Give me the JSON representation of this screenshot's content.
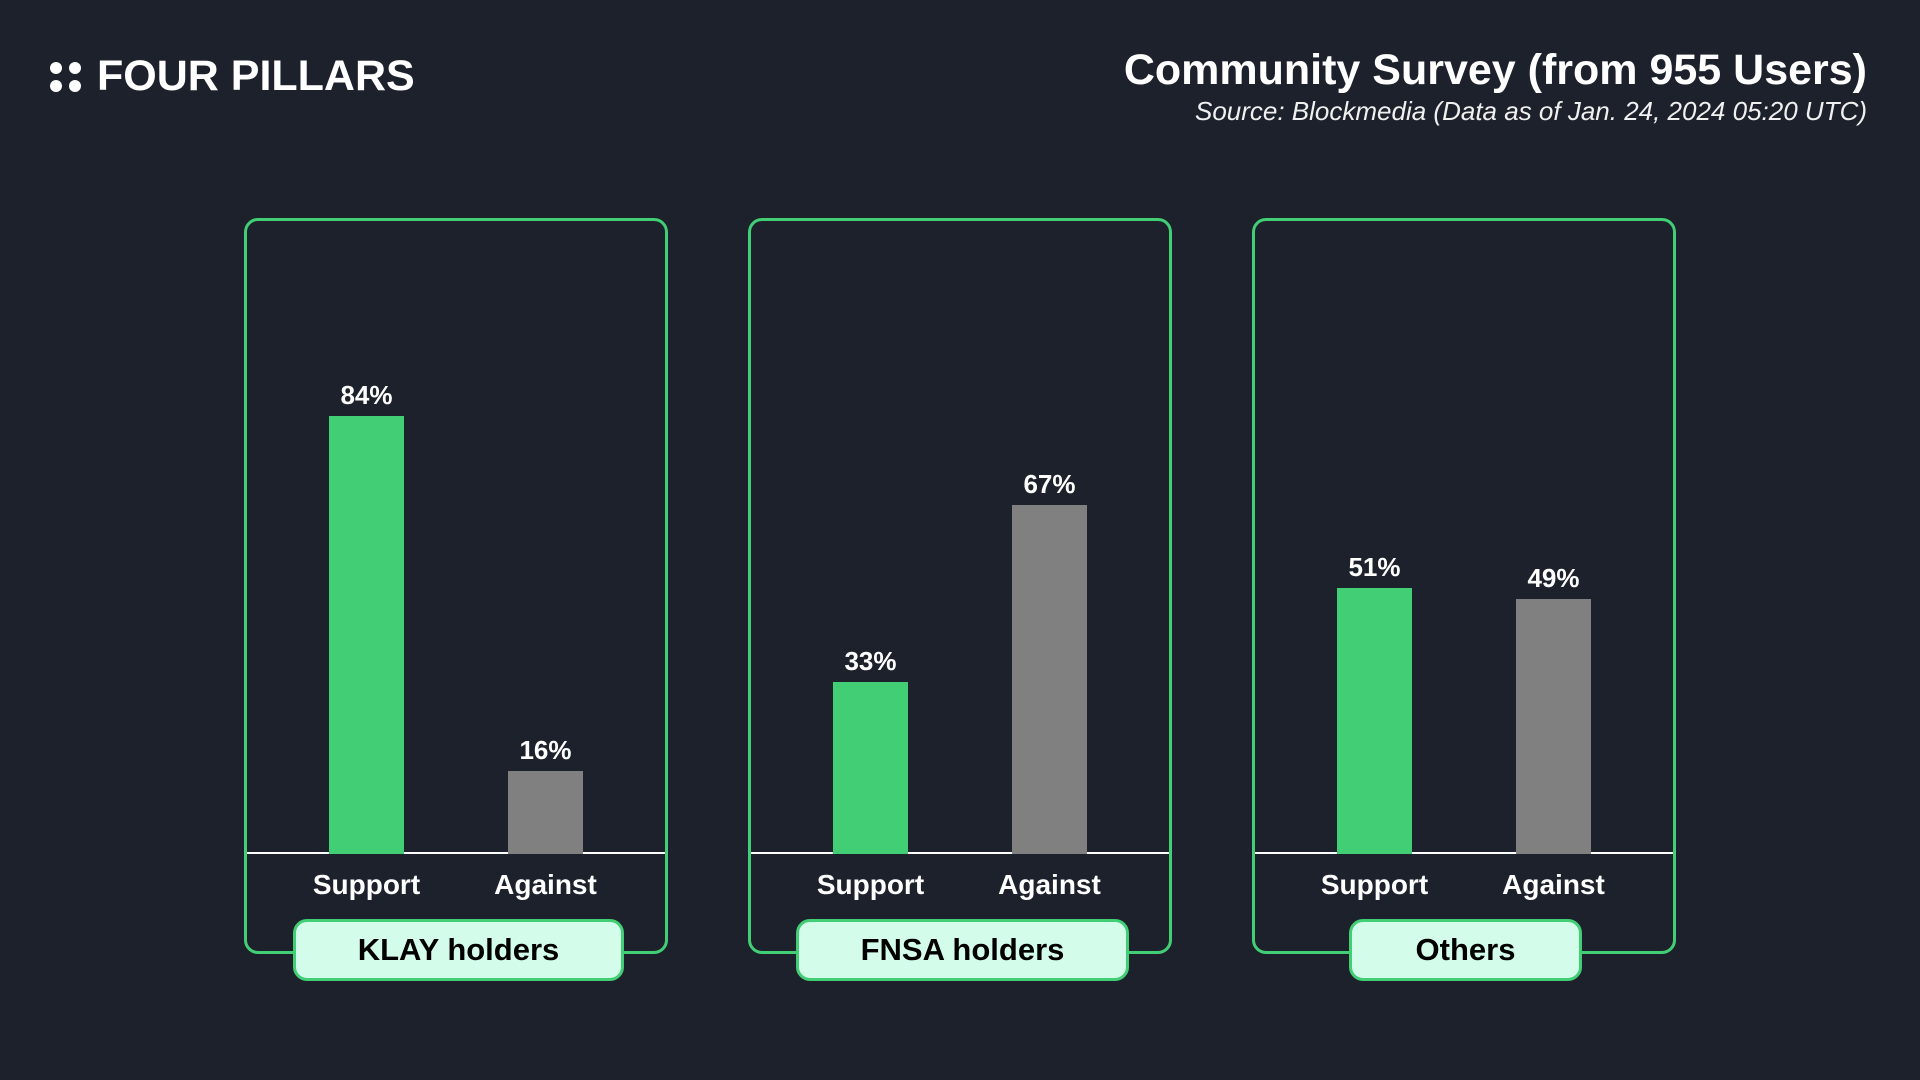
{
  "brand": {
    "name": "FOUR PILLARS"
  },
  "header": {
    "title": "Community Survey (from 955 Users)",
    "subtitle": "Source: Blockmedia (Data as of Jan. 24, 2024 05:20 UTC)"
  },
  "colors": {
    "support": "#41ce74",
    "against": "#808080",
    "background": "#1c212b",
    "badge_bg": "#d4fcea"
  },
  "chart_data": {
    "type": "bar",
    "title": "Community Survey (from 955 Users)",
    "categories": [
      "Support",
      "Against"
    ],
    "ylim": [
      0,
      100
    ],
    "unit": "%",
    "groups": [
      {
        "name": "KLAY holders",
        "values": [
          84,
          16
        ],
        "labels": [
          "84%",
          "16%"
        ]
      },
      {
        "name": "FNSA holders",
        "values": [
          33,
          67
        ],
        "labels": [
          "33%",
          "67%"
        ]
      },
      {
        "name": "Others",
        "values": [
          51,
          49
        ],
        "labels": [
          "51%",
          "49%"
        ]
      }
    ]
  }
}
